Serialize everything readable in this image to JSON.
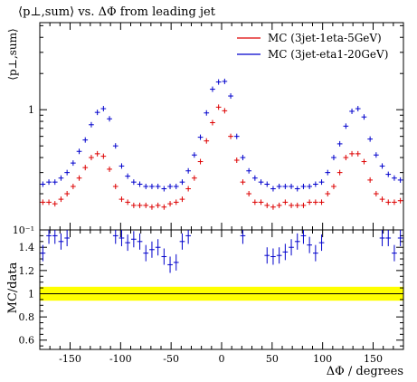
{
  "chart_data": [
    {
      "type": "scatter",
      "title": "⟨p⊥,sum⟩ vs. ΔΦ from leading jet",
      "ylabel": "⟨p⊥,sum⟩",
      "xlabel": "",
      "yscale": "log",
      "ylim": [
        0.1,
        5.3
      ],
      "xlim": [
        -180,
        180
      ],
      "y_tick_labels": [
        "10⁻¹",
        "1"
      ],
      "legend_position": "top-right",
      "series": [
        {
          "name": "MC (3jet-1eta-5GeV)",
          "color": "#dd0000",
          "marker": "cross",
          "x": [
            -177,
            -171,
            -165,
            -159,
            -153,
            -147,
            -141,
            -135,
            -129,
            -123,
            -117,
            -111,
            -105,
            -99,
            -93,
            -87,
            -81,
            -75,
            -69,
            -63,
            -57,
            -51,
            -45,
            -39,
            -33,
            -27,
            -21,
            -15,
            -9,
            -3,
            3,
            9,
            15,
            21,
            27,
            33,
            39,
            45,
            51,
            57,
            63,
            69,
            75,
            81,
            87,
            93,
            99,
            105,
            111,
            117,
            123,
            129,
            135,
            141,
            147,
            153,
            159,
            165,
            171,
            177
          ],
          "y": [
            0.17,
            0.17,
            0.165,
            0.18,
            0.2,
            0.23,
            0.27,
            0.33,
            0.4,
            0.43,
            0.41,
            0.32,
            0.23,
            0.18,
            0.17,
            0.16,
            0.16,
            0.16,
            0.155,
            0.16,
            0.155,
            0.165,
            0.17,
            0.18,
            0.22,
            0.27,
            0.37,
            0.55,
            0.78,
            1.05,
            0.98,
            0.6,
            0.38,
            0.25,
            0.2,
            0.17,
            0.17,
            0.16,
            0.155,
            0.16,
            0.17,
            0.16,
            0.16,
            0.16,
            0.17,
            0.17,
            0.17,
            0.2,
            0.23,
            0.3,
            0.4,
            0.43,
            0.43,
            0.37,
            0.26,
            0.2,
            0.18,
            0.17,
            0.17,
            0.175
          ]
        },
        {
          "name": "MC (3jet-eta1-20GeV)",
          "color": "#0000cc",
          "marker": "cross",
          "x": [
            -177,
            -171,
            -165,
            -159,
            -153,
            -147,
            -141,
            -135,
            -129,
            -123,
            -117,
            -111,
            -105,
            -99,
            -93,
            -87,
            -81,
            -75,
            -69,
            -63,
            -57,
            -51,
            -45,
            -39,
            -33,
            -27,
            -21,
            -15,
            -9,
            -3,
            3,
            9,
            15,
            21,
            27,
            33,
            39,
            45,
            51,
            57,
            63,
            69,
            75,
            81,
            87,
            93,
            99,
            105,
            111,
            117,
            123,
            129,
            135,
            141,
            147,
            153,
            159,
            165,
            171,
            177
          ],
          "y": [
            0.24,
            0.25,
            0.25,
            0.27,
            0.3,
            0.36,
            0.45,
            0.56,
            0.75,
            0.95,
            1.02,
            0.84,
            0.5,
            0.34,
            0.28,
            0.25,
            0.24,
            0.23,
            0.23,
            0.23,
            0.22,
            0.23,
            0.23,
            0.25,
            0.31,
            0.42,
            0.59,
            0.94,
            1.48,
            1.7,
            1.72,
            1.3,
            0.6,
            0.4,
            0.31,
            0.27,
            0.25,
            0.24,
            0.22,
            0.23,
            0.23,
            0.23,
            0.22,
            0.23,
            0.23,
            0.24,
            0.25,
            0.3,
            0.4,
            0.52,
            0.73,
            0.97,
            1.02,
            0.87,
            0.57,
            0.42,
            0.34,
            0.29,
            0.27,
            0.26
          ]
        }
      ]
    },
    {
      "type": "scatter",
      "ylabel": "MC/data",
      "xlabel": "ΔΦ / degrees",
      "ylim": [
        0.52,
        1.55
      ],
      "xlim": [
        -180,
        180
      ],
      "y_ticks": [
        0.6,
        0.8,
        1,
        1.2,
        1.4
      ],
      "x_ticks": [
        -150,
        -100,
        -50,
        0,
        50,
        100,
        150
      ],
      "reference_line": 1,
      "uncertainty_band": {
        "color": "#ffff00",
        "low": 0.94,
        "high": 1.06
      },
      "series": [
        {
          "color": "#0000cc",
          "marker": "cross",
          "x": [
            -177,
            -171,
            -165,
            -159,
            -153,
            -147,
            -141,
            -135,
            -129,
            -123,
            -117,
            -111,
            -105,
            -99,
            -93,
            -87,
            -81,
            -75,
            -69,
            -63,
            -57,
            -51,
            -45,
            -39,
            -33,
            -27,
            -21,
            -15,
            -9,
            -3,
            3,
            9,
            15,
            21,
            27,
            33,
            39,
            45,
            51,
            57,
            63,
            69,
            75,
            81,
            87,
            93,
            99,
            105,
            111,
            117,
            123,
            129,
            135,
            141,
            147,
            153,
            159,
            165,
            171,
            177
          ],
          "y": [
            1.35,
            1.5,
            1.5,
            1.45,
            1.48,
            null,
            null,
            null,
            null,
            null,
            null,
            null,
            1.5,
            1.48,
            1.44,
            1.47,
            1.45,
            1.35,
            1.38,
            1.4,
            1.32,
            1.25,
            1.27,
            1.45,
            1.5,
            null,
            null,
            null,
            null,
            null,
            null,
            null,
            null,
            1.5,
            null,
            null,
            null,
            1.33,
            1.32,
            1.33,
            1.36,
            1.4,
            1.45,
            1.5,
            1.42,
            1.35,
            1.44,
            null,
            null,
            null,
            null,
            null,
            null,
            null,
            null,
            null,
            1.48,
            1.48,
            1.35,
            1.48
          ]
        }
      ]
    }
  ]
}
